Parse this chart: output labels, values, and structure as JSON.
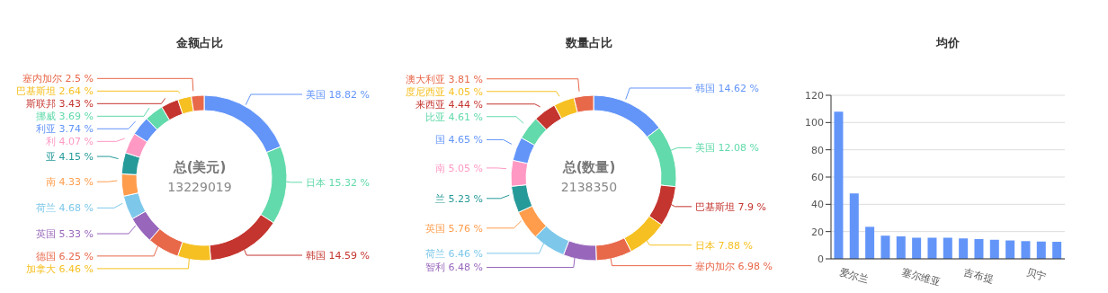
{
  "chart_data": [
    {
      "type": "donut",
      "title": "金额占比",
      "categories": [
        "美国",
        "日本",
        "韩国",
        "加拿大",
        "德国",
        "英国",
        "荷兰",
        "南",
        "亚",
        "利",
        "利亚",
        "挪威",
        "斯联邦",
        "巴基斯坦",
        "塞内加尔"
      ],
      "values": [
        18.82,
        15.32,
        14.59,
        6.46,
        6.25,
        5.33,
        4.68,
        4.33,
        4.15,
        4.07,
        3.74,
        3.69,
        3.43,
        2.64,
        2.5
      ],
      "value_labels": [
        "18.82 %",
        "15.32 %",
        "14.59 %",
        "6.46 %",
        "6.25 %",
        "5.33 %",
        "4.68 %",
        "4.33 %",
        "4.15 %",
        "4.07 %",
        "3.74 %",
        "3.69 %",
        "3.43 %",
        "2.64 %",
        "2.5 %"
      ],
      "colors": [
        "#6395f9",
        "#62daab",
        "#c4352f",
        "#f6c022",
        "#e8684a",
        "#9867bc",
        "#7dc8ea",
        "#ff9d4d",
        "#269a99",
        "#ff99c3",
        "#6395f9",
        "#62daab",
        "#c4352f",
        "#f6c022",
        "#e8684a"
      ],
      "annotations": [
        "总(美元)",
        "13229019"
      ]
    },
    {
      "type": "donut",
      "title": "数量占比",
      "categories": [
        "韩国",
        "美国",
        "巴基斯坦",
        "日本",
        "塞内加尔",
        "智利",
        "荷兰",
        "英国",
        "兰",
        "南",
        "国",
        "比亚",
        "来西亚",
        "度尼西亚",
        "澳大利亚"
      ],
      "values": [
        14.62,
        12.08,
        7.9,
        7.88,
        6.98,
        6.48,
        6.46,
        5.76,
        5.23,
        5.05,
        4.65,
        4.61,
        4.44,
        4.05,
        3.81
      ],
      "value_labels": [
        "14.62 %",
        "12.08 %",
        "7.9 %",
        "7.88 %",
        "6.98 %",
        "6.48 %",
        "6.46 %",
        "5.76 %",
        "5.23 %",
        "5.05 %",
        "4.65 %",
        "4.61 %",
        "4.44 %",
        "4.05 %",
        "3.81 %"
      ],
      "colors": [
        "#6395f9",
        "#62daab",
        "#c4352f",
        "#f6c022",
        "#e8684a",
        "#9867bc",
        "#7dc8ea",
        "#ff9d4d",
        "#269a99",
        "#ff99c3",
        "#6395f9",
        "#62daab",
        "#c4352f",
        "#f6c022",
        "#e8684a"
      ],
      "annotations": [
        "总(数量)",
        "2138350"
      ]
    },
    {
      "type": "bar",
      "title": "均价",
      "categories": [
        "爱尔兰",
        null,
        null,
        null,
        "塞尔维亚",
        null,
        null,
        null,
        "吉布提",
        null,
        null,
        null,
        "贝宁",
        null,
        null
      ],
      "values": [
        108,
        48,
        23.5,
        17,
        16.5,
        15.5,
        15.5,
        15.5,
        15,
        14.5,
        14,
        13.5,
        13,
        12.7,
        12.5
      ],
      "color": "#6395f9",
      "ylim": [
        0,
        120
      ],
      "yticks": [
        0,
        20,
        40,
        60,
        80,
        100,
        120
      ],
      "grid": "y"
    }
  ]
}
